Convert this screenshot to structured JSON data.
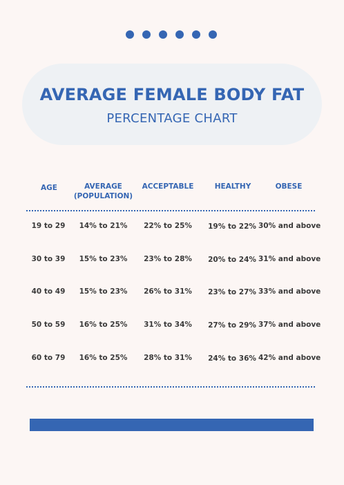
{
  "title": "AVERAGE FEMALE BODY FAT",
  "subtitle": "PERCENTAGE CHART",
  "colors": {
    "accent": "#3566b3",
    "background": "#fcf6f4",
    "pill": "#eef1f4",
    "text": "#3a3a3a"
  },
  "table": {
    "headers": {
      "age": "AGE",
      "average_line1": "AVERAGE",
      "average_line2": "(POPULATION)",
      "acceptable": "ACCEPTABLE",
      "healthy": "HEALTHY",
      "obese": "OBESE"
    },
    "rows": [
      {
        "age": "19 to 29",
        "average": "14% to 21%",
        "acceptable": "22% to 25%",
        "healthy": "19% to 22%",
        "obese": "30% and above"
      },
      {
        "age": "30 to 39",
        "average": "15% to 23%",
        "acceptable": "23% to 28%",
        "healthy": "20% to 24%",
        "obese": "31% and above"
      },
      {
        "age": "40 to 49",
        "average": "15% to 23%",
        "acceptable": "26% to 31%",
        "healthy": "23% to 27%",
        "obese": "33% and above"
      },
      {
        "age": "50 to 59",
        "average": "16% to 25%",
        "acceptable": "31% to 34%",
        "healthy": "27% to 29%",
        "obese": "37% and above"
      },
      {
        "age": "60 to 79",
        "average": "16% to 25%",
        "acceptable": "28% to 31%",
        "healthy": "24% to 36%",
        "obese": "42% and above"
      }
    ]
  }
}
